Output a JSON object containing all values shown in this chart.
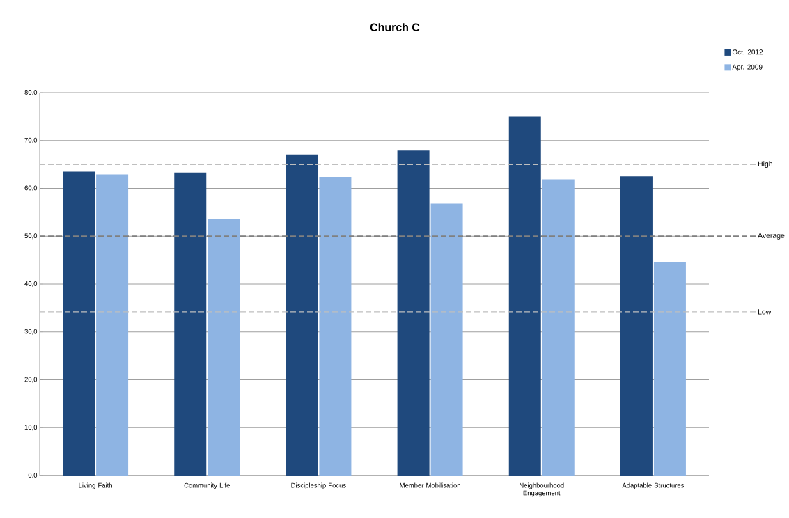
{
  "chart_data": {
    "type": "bar",
    "title": "Church C",
    "categories": [
      "Living Faith",
      "Community Life",
      "Discipleship Focus",
      "Member Mobilisation",
      "Neighbourhood Engagement",
      "Adaptable Structures"
    ],
    "series": [
      {
        "name": "Oct. 2012",
        "color": "#1f497d",
        "values": [
          63.5,
          63.3,
          67.1,
          67.9,
          75.0,
          62.5
        ]
      },
      {
        "name": "Apr. 2009",
        "color": "#8eb4e3",
        "values": [
          62.9,
          53.6,
          62.4,
          56.8,
          61.9,
          44.6
        ]
      }
    ],
    "ylim": [
      0,
      80
    ],
    "yticks": [
      {
        "value": 0,
        "label": "0,0"
      },
      {
        "value": 10,
        "label": "10,0"
      },
      {
        "value": 20,
        "label": "20,0"
      },
      {
        "value": 30,
        "label": "30,0"
      },
      {
        "value": 40,
        "label": "40,0"
      },
      {
        "value": 50,
        "label": "50,0"
      },
      {
        "value": 60,
        "label": "60,0"
      },
      {
        "value": 70,
        "label": "70,0"
      },
      {
        "value": 80,
        "label": "80,0"
      }
    ],
    "grid": "y",
    "legend": "top right",
    "ref_lines": [
      {
        "axis": "y",
        "value": 65,
        "label": "High",
        "color": "#bfbfbf",
        "line_style": "dashed"
      },
      {
        "axis": "y",
        "value": 50,
        "label": "Average",
        "color": "#808080",
        "line_style": "dashed"
      },
      {
        "axis": "y",
        "value": 34.2,
        "label": "Low",
        "color": "#bfbfbf",
        "line_style": "dashed"
      }
    ]
  }
}
